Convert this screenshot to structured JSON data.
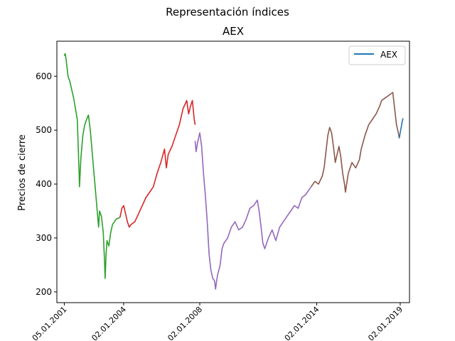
{
  "chart_data": {
    "type": "line",
    "suptitle": "Representación índices",
    "title": "AEX",
    "xlabel": "",
    "ylabel": "Precios de cierre",
    "ylim": [
      180,
      665
    ],
    "xlim": [
      2000.6,
      2019.6
    ],
    "yticks": [
      200,
      300,
      400,
      500,
      600
    ],
    "xticks": [
      {
        "x": 2001.0,
        "label": "05.01.2001"
      },
      {
        "x": 2004.2,
        "label": "02.01.2004"
      },
      {
        "x": 2008.3,
        "label": "02.01.2008"
      },
      {
        "x": 2014.6,
        "label": "02.01.2014"
      },
      {
        "x": 2019.1,
        "label": "02.01.2019"
      }
    ],
    "legend": {
      "position": "top-right",
      "entries": [
        {
          "name": "AEX",
          "color": "#1f77b4"
        }
      ]
    },
    "grid": false,
    "series": [
      {
        "color": "#2ca02c",
        "points": [
          [
            2001.0,
            638
          ],
          [
            2001.05,
            642
          ],
          [
            2001.1,
            630
          ],
          [
            2001.2,
            600
          ],
          [
            2001.3,
            590
          ],
          [
            2001.4,
            575
          ],
          [
            2001.5,
            560
          ],
          [
            2001.6,
            540
          ],
          [
            2001.7,
            520
          ],
          [
            2001.75,
            470
          ],
          [
            2001.8,
            420
          ],
          [
            2001.82,
            395
          ],
          [
            2001.9,
            450
          ],
          [
            2002.0,
            490
          ],
          [
            2002.1,
            510
          ],
          [
            2002.2,
            520
          ],
          [
            2002.3,
            528
          ],
          [
            2002.4,
            500
          ],
          [
            2002.5,
            460
          ],
          [
            2002.6,
            420
          ],
          [
            2002.7,
            380
          ],
          [
            2002.8,
            340
          ],
          [
            2002.85,
            320
          ],
          [
            2002.9,
            350
          ],
          [
            2003.0,
            340
          ],
          [
            2003.1,
            310
          ],
          [
            2003.15,
            270
          ],
          [
            2003.2,
            225
          ],
          [
            2003.25,
            270
          ],
          [
            2003.3,
            295
          ],
          [
            2003.4,
            285
          ],
          [
            2003.5,
            310
          ],
          [
            2003.6,
            325
          ],
          [
            2003.7,
            330
          ],
          [
            2003.8,
            335
          ],
          [
            2004.0,
            338
          ]
        ]
      },
      {
        "color": "#d62728",
        "points": [
          [
            2004.0,
            338
          ],
          [
            2004.1,
            355
          ],
          [
            2004.2,
            360
          ],
          [
            2004.3,
            345
          ],
          [
            2004.4,
            330
          ],
          [
            2004.5,
            320
          ],
          [
            2004.6,
            325
          ],
          [
            2004.8,
            330
          ],
          [
            2005.0,
            345
          ],
          [
            2005.2,
            360
          ],
          [
            2005.4,
            375
          ],
          [
            2005.6,
            385
          ],
          [
            2005.8,
            395
          ],
          [
            2006.0,
            420
          ],
          [
            2006.2,
            440
          ],
          [
            2006.4,
            465
          ],
          [
            2006.5,
            430
          ],
          [
            2006.6,
            455
          ],
          [
            2006.8,
            470
          ],
          [
            2007.0,
            490
          ],
          [
            2007.2,
            510
          ],
          [
            2007.4,
            540
          ],
          [
            2007.6,
            555
          ],
          [
            2007.7,
            530
          ],
          [
            2007.8,
            545
          ],
          [
            2007.9,
            555
          ],
          [
            2008.0,
            520
          ],
          [
            2008.05,
            510
          ]
        ]
      },
      {
        "color": "#9467bd",
        "points": [
          [
            2008.05,
            480
          ],
          [
            2008.1,
            460
          ],
          [
            2008.2,
            480
          ],
          [
            2008.3,
            495
          ],
          [
            2008.4,
            470
          ],
          [
            2008.5,
            420
          ],
          [
            2008.6,
            380
          ],
          [
            2008.7,
            330
          ],
          [
            2008.8,
            270
          ],
          [
            2008.9,
            240
          ],
          [
            2009.0,
            225
          ],
          [
            2009.1,
            220
          ],
          [
            2009.15,
            205
          ],
          [
            2009.25,
            230
          ],
          [
            2009.4,
            250
          ],
          [
            2009.5,
            280
          ],
          [
            2009.6,
            290
          ],
          [
            2009.8,
            300
          ],
          [
            2010.0,
            320
          ],
          [
            2010.2,
            330
          ],
          [
            2010.4,
            315
          ],
          [
            2010.6,
            320
          ],
          [
            2010.8,
            335
          ],
          [
            2011.0,
            355
          ],
          [
            2011.2,
            360
          ],
          [
            2011.4,
            370
          ],
          [
            2011.5,
            350
          ],
          [
            2011.6,
            320
          ],
          [
            2011.7,
            290
          ],
          [
            2011.8,
            280
          ],
          [
            2012.0,
            300
          ],
          [
            2012.2,
            315
          ],
          [
            2012.4,
            295
          ],
          [
            2012.6,
            320
          ],
          [
            2012.8,
            330
          ],
          [
            2013.0,
            340
          ],
          [
            2013.2,
            350
          ],
          [
            2013.4,
            360
          ],
          [
            2013.6,
            355
          ],
          [
            2013.8,
            375
          ],
          [
            2014.0,
            380
          ],
          [
            2014.2,
            390
          ],
          [
            2014.3,
            395
          ]
        ]
      },
      {
        "color": "#8c564b",
        "points": [
          [
            2014.3,
            395
          ],
          [
            2014.5,
            405
          ],
          [
            2014.7,
            400
          ],
          [
            2014.9,
            415
          ],
          [
            2015.0,
            430
          ],
          [
            2015.1,
            460
          ],
          [
            2015.2,
            490
          ],
          [
            2015.3,
            505
          ],
          [
            2015.4,
            495
          ],
          [
            2015.5,
            470
          ],
          [
            2015.6,
            440
          ],
          [
            2015.7,
            455
          ],
          [
            2015.8,
            470
          ],
          [
            2015.9,
            450
          ],
          [
            2016.0,
            420
          ],
          [
            2016.1,
            400
          ],
          [
            2016.15,
            385
          ],
          [
            2016.3,
            420
          ],
          [
            2016.5,
            440
          ],
          [
            2016.7,
            430
          ],
          [
            2016.9,
            445
          ],
          [
            2017.0,
            465
          ],
          [
            2017.2,
            490
          ],
          [
            2017.4,
            510
          ],
          [
            2017.6,
            520
          ],
          [
            2017.8,
            530
          ],
          [
            2018.0,
            545
          ],
          [
            2018.1,
            555
          ],
          [
            2018.3,
            560
          ],
          [
            2018.5,
            565
          ],
          [
            2018.7,
            570
          ],
          [
            2018.8,
            540
          ],
          [
            2018.9,
            510
          ],
          [
            2019.0,
            495
          ],
          [
            2019.05,
            485
          ]
        ]
      },
      {
        "color": "#1f77b4",
        "points": [
          [
            2019.05,
            485
          ],
          [
            2019.1,
            495
          ],
          [
            2019.15,
            505
          ],
          [
            2019.2,
            515
          ],
          [
            2019.25,
            522
          ]
        ]
      }
    ]
  }
}
